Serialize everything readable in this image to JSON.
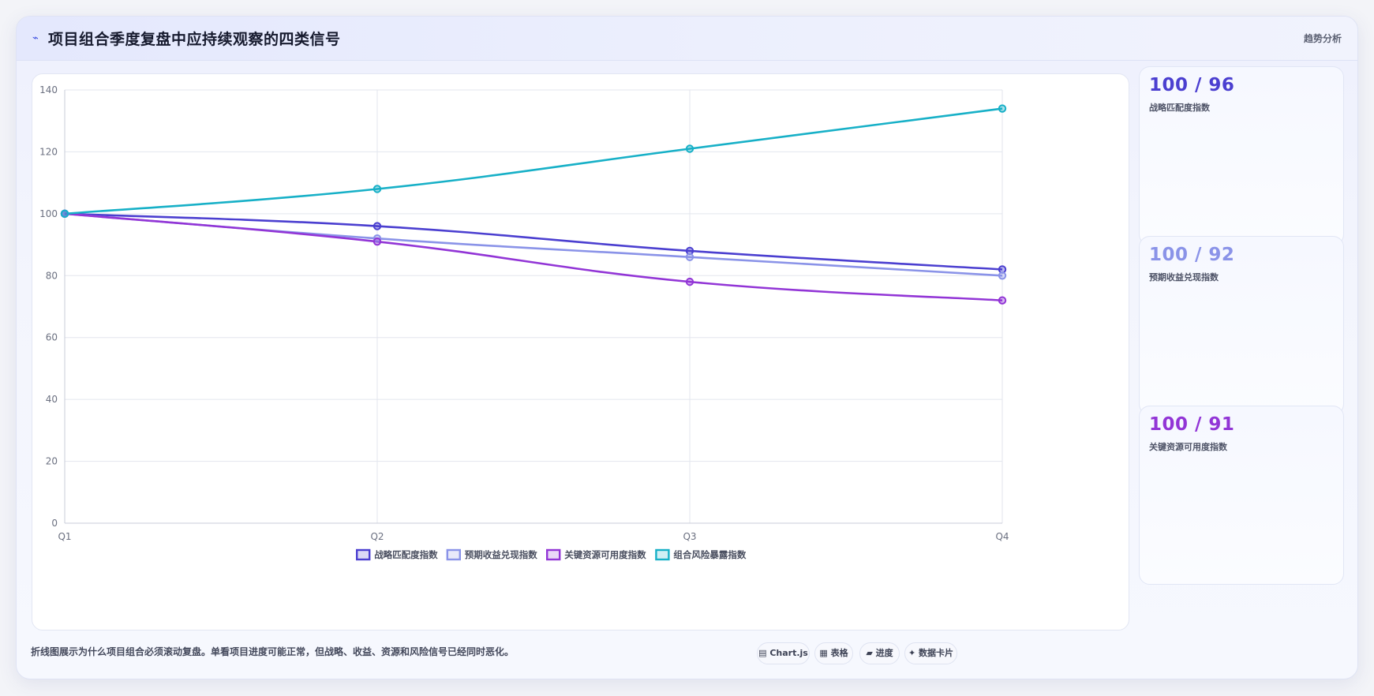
{
  "header": {
    "icon": "trend-line-icon",
    "title": "项目组合季度复盘中应持续观察的四类信号",
    "tag": "趋势分析"
  },
  "chart_data": {
    "type": "line",
    "title": "",
    "xlabel": "",
    "ylabel": "",
    "categories": [
      "Q1",
      "Q2",
      "Q3",
      "Q4"
    ],
    "ylim": [
      0,
      140
    ],
    "yticks": [
      0,
      20,
      40,
      60,
      80,
      100,
      120,
      140
    ],
    "grid": true,
    "legend_position": "bottom",
    "series": [
      {
        "name": "战略匹配度指数",
        "color": "#4b3fd0",
        "values": [
          100,
          96,
          88,
          82
        ]
      },
      {
        "name": "预期收益兑现指数",
        "color": "#8a93e8",
        "values": [
          100,
          92,
          86,
          80
        ]
      },
      {
        "name": "关键资源可用度指数",
        "color": "#9235d6",
        "values": [
          100,
          91,
          78,
          72
        ]
      },
      {
        "name": "组合风险暴露指数",
        "color": "#17b0c7",
        "values": [
          100,
          108,
          121,
          134
        ]
      }
    ]
  },
  "side_cards": [
    {
      "value": "100 / 96",
      "label": "战略匹配度指数",
      "color": "#4b3fd0"
    },
    {
      "value": "100 / 92",
      "label": "预期收益兑现指数",
      "color": "#8a93e8"
    },
    {
      "value": "100 / 91",
      "label": "关键资源可用度指数",
      "color": "#9235d6"
    }
  ],
  "footnote": "折线图展示为什么项目组合必须滚动复盘。单看项目进度可能正常，但战略、收益、资源和风险信号已经同时恶化。",
  "chips": [
    {
      "label": "▤ Chart.js",
      "icon": "chart-icon"
    },
    {
      "label": "▦ 表格",
      "icon": "table-icon"
    },
    {
      "label": "▰ 进度",
      "icon": "progress-icon"
    },
    {
      "label": "✦ 数据卡片",
      "icon": "data-card-icon"
    }
  ]
}
